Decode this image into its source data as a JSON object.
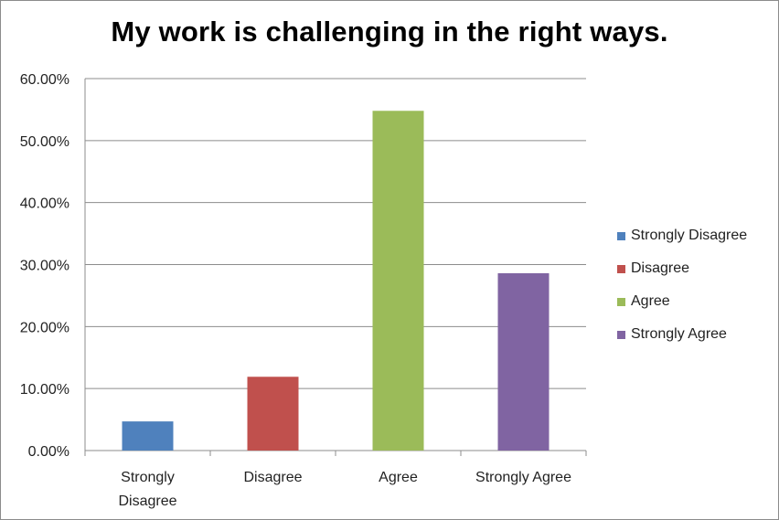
{
  "chart_data": {
    "type": "bar",
    "title": "My work is challenging in the right ways.",
    "xlabel": "",
    "ylabel": "",
    "categories": [
      "Strongly Disagree",
      "Disagree",
      "Agree",
      "Strongly Agree"
    ],
    "category_tick_lines": [
      [
        "Strongly",
        "Disagree"
      ],
      [
        "Disagree"
      ],
      [
        "Agree"
      ],
      [
        "Strongly Agree"
      ]
    ],
    "values": [
      4.7,
      11.9,
      54.8,
      28.6
    ],
    "colors": [
      "#4F81BD",
      "#C0504D",
      "#9BBB59",
      "#8064A2"
    ],
    "ylim": [
      0,
      60
    ],
    "yticks": [
      "0.00%",
      "10.00%",
      "20.00%",
      "30.00%",
      "40.00%",
      "50.00%",
      "60.00%"
    ],
    "grid": true,
    "legend_position": "right",
    "legend": [
      "Strongly Disagree",
      "Disagree",
      "Agree",
      "Strongly Agree"
    ]
  }
}
